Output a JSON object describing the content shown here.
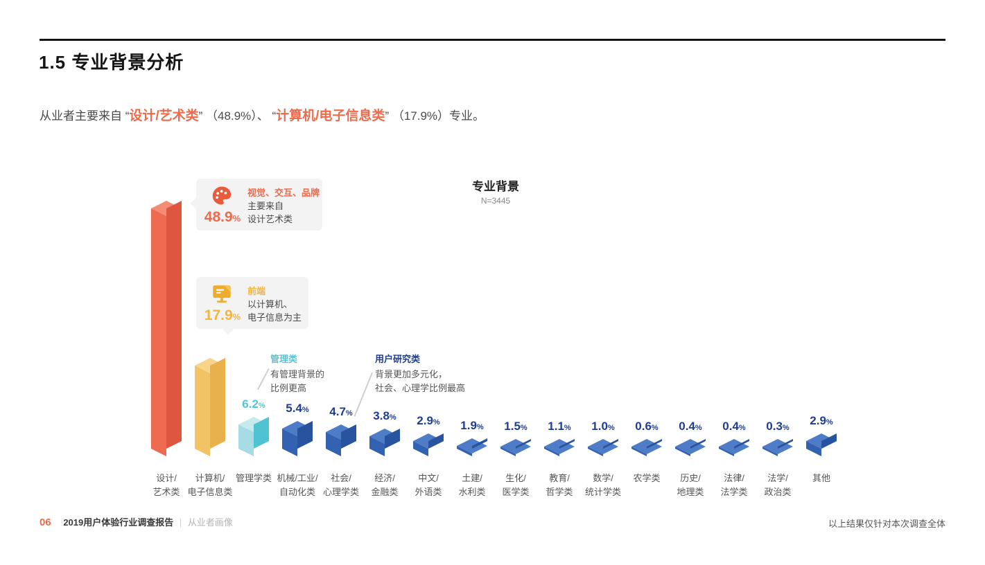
{
  "page": {
    "title": "1.5 专业背景分析",
    "subtitle_segments": [
      {
        "text": "从业者主要来自 “"
      },
      {
        "text": "设计/艺术类"
      },
      {
        "text": "” （48.9%）、 “"
      },
      {
        "text": "计算机/电子信息类"
      },
      {
        "text": "” （17.9%）专业。"
      }
    ],
    "footer": {
      "page_no": "06",
      "report": "2019用户体验行业调查报告",
      "divider": "|",
      "section": "从业者画像",
      "right_note": "以上结果仅针对本次调查全体"
    }
  },
  "callouts": [
    {
      "icon": "palette-icon",
      "pct": "48.9",
      "pct_suffix": "%",
      "title": "视觉、交互、品牌",
      "lines": [
        "主要来自",
        "设计艺术类"
      ],
      "accent": "#ED6A4B"
    },
    {
      "icon": "monitor-icon",
      "pct": "17.9",
      "pct_suffix": "%",
      "title": "前端",
      "lines": [
        "以计算机、",
        "电子信息为主"
      ],
      "accent": "#F2B63C"
    }
  ],
  "annotations": [
    {
      "title": "管理类",
      "lines": [
        "有管理背景的",
        "比例更高"
      ],
      "color": "#56C5D3"
    },
    {
      "title": "用户研究类",
      "lines": [
        "背景更加多元化，",
        "社会、心理学比例最高"
      ],
      "color": "#1E3D8F"
    }
  ],
  "chart_data": {
    "type": "bar",
    "title": "专业背景",
    "sample_note": "N=3445",
    "unit": "%",
    "ylim": [
      0,
      50
    ],
    "grid": false,
    "legend": "none",
    "categories": [
      "设计/艺术类",
      "计算机/电子信息类",
      "管理学类",
      "机械/工业/自动化类",
      "社会/心理学类",
      "经济/金融类",
      "中文/外语类",
      "土建/水利类",
      "生化/医学类",
      "教育/哲学类",
      "数学/统计学类",
      "农学类",
      "历史/地理类",
      "法律/法学类",
      "法学/政治类",
      "其他"
    ],
    "values": [
      48.9,
      17.9,
      6.2,
      5.4,
      4.7,
      3.8,
      2.9,
      1.9,
      1.5,
      1.1,
      1.0,
      0.6,
      0.4,
      0.4,
      0.3,
      2.9
    ],
    "bars": [
      {
        "name": "design-art",
        "label_lines": [
          "设计/",
          "艺术类"
        ],
        "value": 48.9,
        "display": "48.9",
        "show_pct": false,
        "color": "red"
      },
      {
        "name": "computer-einfo",
        "label_lines": [
          "计算机/",
          "电子信息类"
        ],
        "value": 17.9,
        "display": "17.9",
        "show_pct": false,
        "color": "yellow"
      },
      {
        "name": "management",
        "label_lines": [
          "管理学类"
        ],
        "value": 6.2,
        "display": "6.2",
        "show_pct": true,
        "color": "cyan"
      },
      {
        "name": "mechanical-industrial-automation",
        "label_lines": [
          "机械/工业/",
          "自动化类"
        ],
        "value": 5.4,
        "display": "5.4",
        "show_pct": true,
        "color": "blue"
      },
      {
        "name": "social-psychology",
        "label_lines": [
          "社会/",
          "心理学类"
        ],
        "value": 4.7,
        "display": "4.7",
        "show_pct": true,
        "color": "blue"
      },
      {
        "name": "economics-finance",
        "label_lines": [
          "经济/",
          "金融类"
        ],
        "value": 3.8,
        "display": "3.8",
        "show_pct": true,
        "color": "blue"
      },
      {
        "name": "chinese-foreign-language",
        "label_lines": [
          "中文/",
          "外语类"
        ],
        "value": 2.9,
        "display": "2.9",
        "show_pct": true,
        "color": "blue"
      },
      {
        "name": "civil-hydraulic",
        "label_lines": [
          "土建/",
          "水利类"
        ],
        "value": 1.9,
        "display": "1.9",
        "show_pct": true,
        "color": "blue"
      },
      {
        "name": "bio-medical",
        "label_lines": [
          "生化/",
          "医学类"
        ],
        "value": 1.5,
        "display": "1.5",
        "show_pct": true,
        "color": "blue"
      },
      {
        "name": "education-philosophy",
        "label_lines": [
          "教育/",
          "哲学类"
        ],
        "value": 1.1,
        "display": "1.1",
        "show_pct": true,
        "color": "blue"
      },
      {
        "name": "math-statistics",
        "label_lines": [
          "数学/",
          "统计学类"
        ],
        "value": 1.0,
        "display": "1.0",
        "show_pct": true,
        "color": "blue"
      },
      {
        "name": "agronomy",
        "label_lines": [
          "农学类"
        ],
        "value": 0.6,
        "display": "0.6",
        "show_pct": true,
        "color": "blue"
      },
      {
        "name": "history-geography",
        "label_lines": [
          "历史/",
          "地理类"
        ],
        "value": 0.4,
        "display": "0.4",
        "show_pct": true,
        "color": "blue"
      },
      {
        "name": "law-legal",
        "label_lines": [
          "法律/",
          "法学类"
        ],
        "value": 0.4,
        "display": "0.4",
        "show_pct": true,
        "color": "blue"
      },
      {
        "name": "law-politics",
        "label_lines": [
          "法学/",
          "政治类"
        ],
        "value": 0.3,
        "display": "0.3",
        "show_pct": true,
        "color": "blue"
      },
      {
        "name": "other",
        "label_lines": [
          "其他"
        ],
        "value": 2.9,
        "display": "2.9",
        "show_pct": true,
        "color": "blue"
      }
    ]
  },
  "colors": {
    "accent_orange": "#ED6A4B",
    "accent_yellow": "#F2B63C",
    "navy_text": "#1E3D8F",
    "cyan_text": "#56C5D3",
    "bar": {
      "red": {
        "top": "#F28C74",
        "left": "#EE6A50",
        "right": "#DF5640"
      },
      "yellow": {
        "top": "#F7D489",
        "left": "#F2C364",
        "right": "#E9B14C"
      },
      "cyan": {
        "top": "#C7EAEF",
        "left": "#A7DCE4",
        "right": "#4FC3D2"
      },
      "blue": {
        "top": "#4E7CC7",
        "left": "#3262B1",
        "right": "#27539F"
      }
    }
  }
}
